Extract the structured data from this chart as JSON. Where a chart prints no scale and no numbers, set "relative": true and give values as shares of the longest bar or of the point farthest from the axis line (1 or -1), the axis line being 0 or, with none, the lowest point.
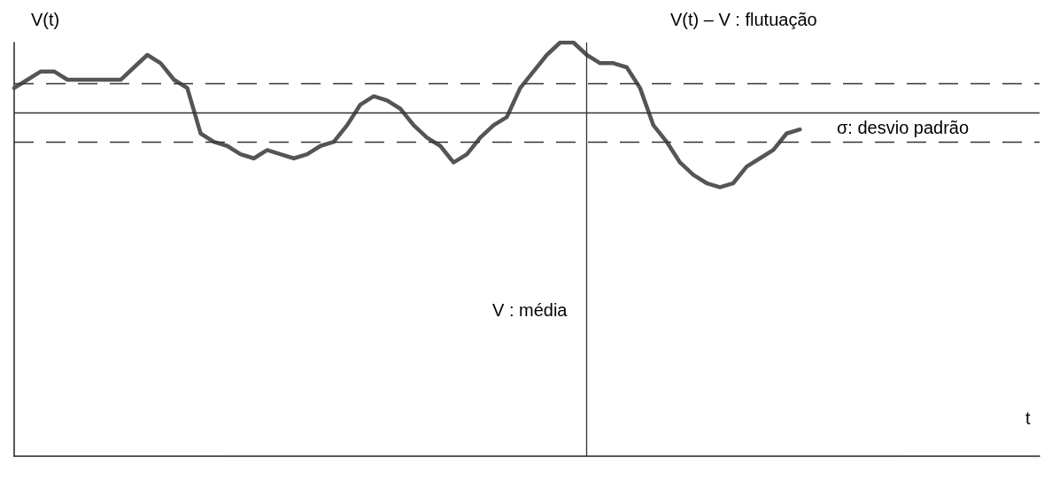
{
  "chart_data": {
    "type": "line",
    "relative": true,
    "ylabel": "V(t)",
    "xlabel": "t",
    "annotations": [
      "V(t) – V : flutuação",
      "σ: desvio padrão",
      "V : média"
    ],
    "categories": [
      null,
      null,
      null,
      null,
      null,
      null,
      null,
      null,
      null,
      null,
      null,
      null,
      null,
      null,
      null,
      null,
      null,
      null,
      null,
      null,
      null,
      null,
      null,
      null,
      null,
      null,
      null,
      null,
      null,
      null,
      null,
      null,
      null,
      null,
      null,
      null,
      null,
      null,
      null,
      null,
      null,
      null,
      null,
      null,
      null,
      null,
      null,
      null,
      null,
      null,
      null,
      null,
      null,
      null,
      null,
      null,
      null,
      null,
      null,
      null,
      null,
      null,
      null,
      null,
      null,
      null,
      null,
      null,
      null,
      null,
      null,
      null,
      null,
      null,
      null,
      null,
      null,
      null
    ],
    "series": [
      {
        "color": "#555555",
        "values": [
          0.89,
          0.91,
          0.93,
          0.93,
          0.91,
          0.91,
          0.91,
          0.91,
          0.91,
          0.94,
          0.97,
          0.95,
          0.91,
          0.89,
          0.78,
          0.76,
          0.75,
          0.73,
          0.72,
          0.74,
          0.73,
          0.72,
          0.73,
          0.75,
          0.76,
          0.8,
          0.85,
          0.87,
          0.86,
          0.84,
          0.8,
          0.77,
          0.75,
          0.71,
          0.73,
          0.77,
          0.8,
          0.82,
          0.89,
          0.93,
          0.97,
          1,
          1,
          0.97,
          0.95,
          0.95,
          0.94,
          0.89,
          0.8,
          0.76,
          0.71,
          0.68,
          0.66,
          0.65,
          0.66,
          0.7,
          0.72,
          0.74,
          0.78,
          0.79,
          null,
          null,
          null,
          null,
          null,
          null,
          null,
          null,
          null,
          null,
          null,
          null,
          null,
          null,
          null,
          null,
          null,
          null
        ]
      }
    ],
    "ref_lines": [
      {
        "axis": "y",
        "value": 0.83,
        "line_style": "solid",
        "color": "#333333"
      },
      {
        "axis": "y",
        "value": 0.9,
        "line_style": "dashed",
        "color": "#333333"
      },
      {
        "axis": "y",
        "value": 0.76,
        "line_style": "dashed",
        "color": "#333333"
      }
    ],
    "grid": false,
    "marker": "none",
    "line_style": "solid"
  }
}
